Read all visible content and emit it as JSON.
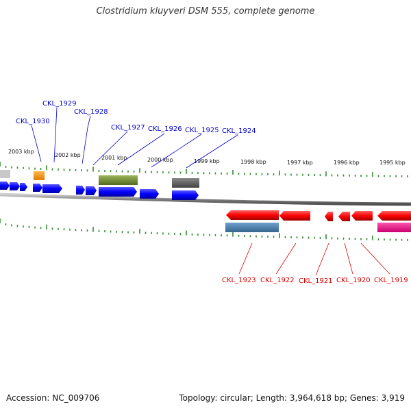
{
  "title": "Clostridium kluyveri DSM 555, complete genome",
  "footer": {
    "accession": "Accession: NC_009706",
    "summary": "Topology: circular; Length: 3,964,618 bp; Genes: 3,919"
  },
  "kbp_ticks": [
    "2003 kbp",
    "2002 kbp",
    "2001 kbp",
    "2000 kbp",
    "1999 kbp",
    "1998 kbp",
    "1997 kbp",
    "1996 kbp",
    "1995 kbp"
  ],
  "top_labels": [
    "CKL_1929",
    "CKL_1928",
    "CKL_1930",
    "CKL_1927",
    "CKL_1926",
    "CKL_1925",
    "CKL_1924"
  ],
  "bottom_labels": [
    "CKL_1923",
    "CKL_1922",
    "CKL_1921",
    "CKL_1920",
    "CKL_1919"
  ],
  "colors": {
    "forward_gene": "#0000ff",
    "reverse_gene": "#ff0000",
    "forward_label": "#0000cc",
    "reverse_label": "#dd0000",
    "tick": "#2e8b2e",
    "backbone": "#808080",
    "feature_orange": "#ff9900",
    "feature_olive": "#6b8e23",
    "feature_gray": "#666666",
    "feature_steelblue": "#4682b4",
    "feature_magenta": "#ff1493"
  }
}
